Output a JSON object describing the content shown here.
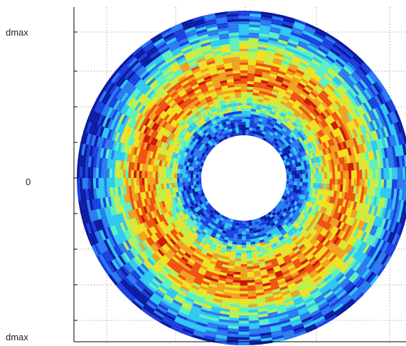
{
  "chart_data": {
    "type": "heatmap",
    "title": "",
    "xlabel": "",
    "ylabel": "",
    "ytick_labels": [
      "dmax",
      "0",
      "dmax"
    ],
    "grid": true,
    "description_style": "polar annulus heatmap",
    "colormap": [
      "#0a1aa0",
      "#1a3fe0",
      "#2a7af0",
      "#2ec8f0",
      "#5af0c0",
      "#b8f050",
      "#f0e020",
      "#f0a020",
      "#f05010",
      "#c81808"
    ],
    "rings": [
      {
        "radius": 0.0,
        "level": null
      },
      {
        "radius": 0.28,
        "level": 0.18
      },
      {
        "radius": 0.36,
        "level": 0.22
      },
      {
        "radius": 0.44,
        "level": 0.48
      },
      {
        "radius": 0.52,
        "level": 0.72
      },
      {
        "radius": 0.6,
        "level": 0.8
      },
      {
        "radius": 0.68,
        "level": 0.75
      },
      {
        "radius": 0.76,
        "level": 0.58
      },
      {
        "radius": 0.84,
        "level": 0.38
      },
      {
        "radius": 0.92,
        "level": 0.24
      },
      {
        "radius": 1.0,
        "level": 0.14
      }
    ]
  }
}
